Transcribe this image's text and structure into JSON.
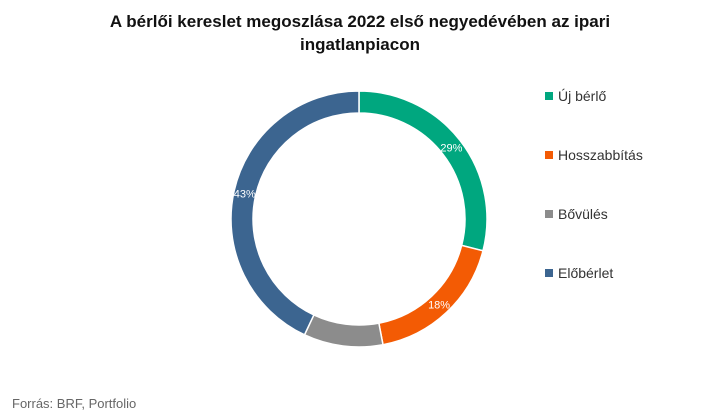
{
  "chart_data": {
    "type": "pie",
    "title": "A bérlői kereslet megoszlása 2022 első negyedévében az ipari ingatlanpiacon",
    "categories": [
      "Új bérlő",
      "Hosszabbítás",
      "Bővülés",
      "Előbérlet"
    ],
    "values": [
      29,
      18,
      10,
      43
    ],
    "units": "%",
    "data_labels": [
      "29%",
      "18%",
      "",
      "43%"
    ],
    "colors": [
      "#00a77f",
      "#f35b04",
      "#8c8c8c",
      "#3c6590"
    ],
    "donut": true,
    "legend_position": "right"
  },
  "source": "Forrás: BRF, Portfolio"
}
